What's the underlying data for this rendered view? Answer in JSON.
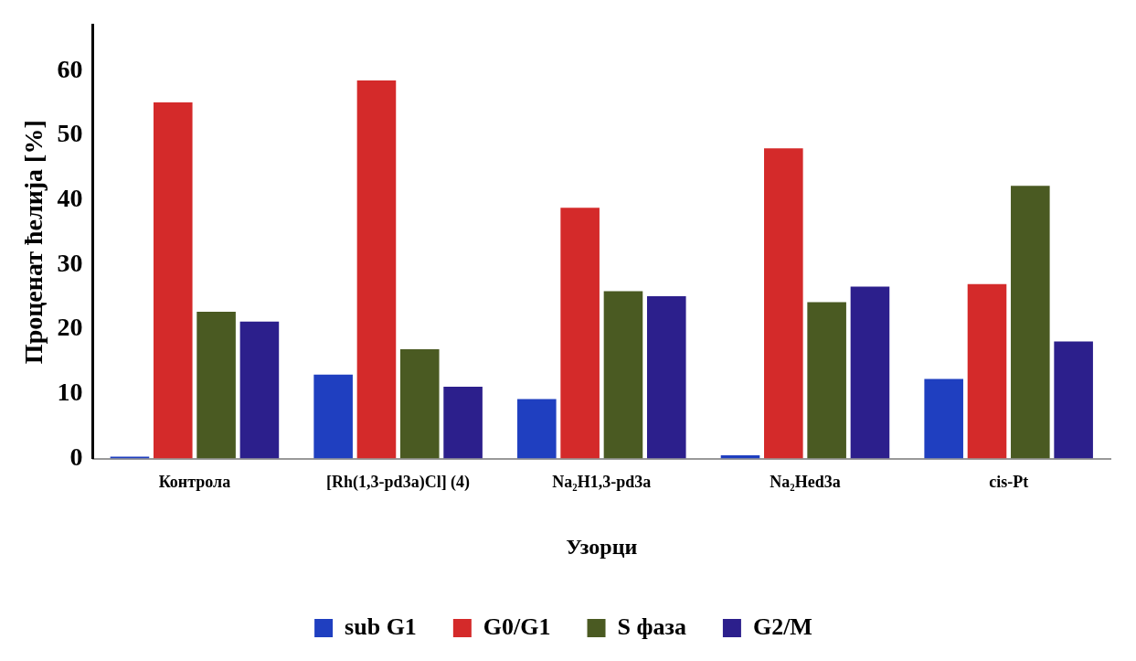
{
  "chart_data": {
    "type": "bar",
    "xlabel": "Узорци",
    "ylabel": "Проценат ћелија [%]",
    "categories": [
      "Контрола",
      "[Rh(1,3-pd3a)Cl] (4)",
      "Na₂H1,3-pd3a",
      "Na₂Hed3a",
      "cis-Pt"
    ],
    "series": [
      {
        "name": "sub G1",
        "color": "#1f3fc0",
        "values": [
          0.3,
          13.0,
          9.2,
          0.5,
          12.3
        ]
      },
      {
        "name": "G0/G1",
        "color": "#d42a2a",
        "values": [
          55.1,
          58.5,
          38.8,
          48.0,
          27.0
        ]
      },
      {
        "name": "S фаза",
        "color": "#4a5a22",
        "values": [
          22.7,
          16.9,
          25.9,
          24.2,
          42.2
        ]
      },
      {
        "name": "G2/M",
        "color": "#2c1f8c",
        "values": [
          21.2,
          11.1,
          25.1,
          26.6,
          18.1
        ]
      }
    ],
    "ylim": [
      0,
      67
    ],
    "yticks": [
      0,
      10,
      20,
      30,
      40,
      50,
      60
    ],
    "grid": false,
    "legend": "bottom"
  }
}
